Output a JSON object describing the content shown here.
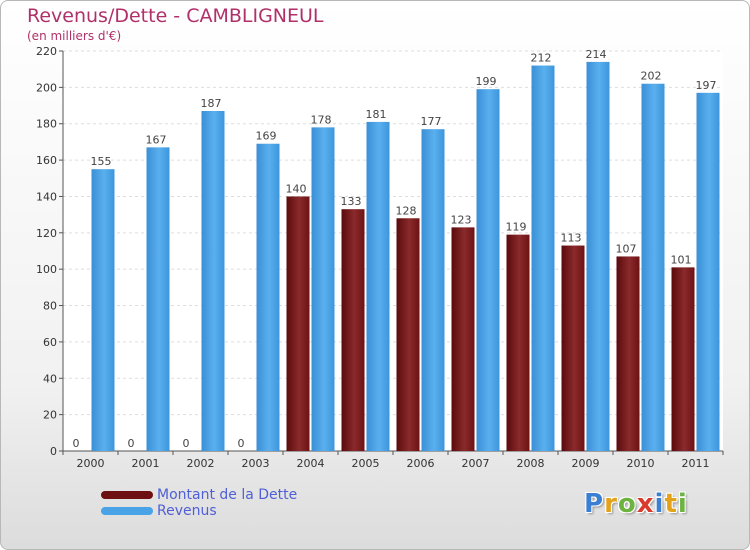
{
  "chart_data": {
    "type": "bar",
    "title": "Revenus/Dette - CAMBLIGNEUL",
    "subtitle": "(en milliers d'€)",
    "categories": [
      "2000",
      "2001",
      "2002",
      "2003",
      "2004",
      "2005",
      "2006",
      "2007",
      "2008",
      "2009",
      "2010",
      "2011"
    ],
    "series": [
      {
        "name": "Montant de la Dette",
        "color": "#6e0f12",
        "values": [
          0,
          0,
          0,
          0,
          140,
          133,
          128,
          123,
          119,
          113,
          107,
          101
        ]
      },
      {
        "name": "Revenus",
        "color": "#4aa3e6",
        "values": [
          155,
          167,
          187,
          169,
          178,
          181,
          177,
          199,
          212,
          214,
          202,
          197
        ]
      }
    ],
    "ylim": [
      0,
      220
    ],
    "yticks": [
      0,
      20,
      40,
      60,
      80,
      100,
      120,
      140,
      160,
      180,
      200,
      220
    ],
    "grid": true,
    "legend_position": "bottom-left"
  },
  "logo": {
    "letters": [
      "P",
      "r",
      "o",
      "x",
      "i",
      "t",
      "i"
    ],
    "colors": [
      "#3b7fd4",
      "#e3a21a",
      "#6cb33f",
      "#d93a2b",
      "#3b7fd4",
      "#e3a21a",
      "#6cb33f"
    ]
  }
}
